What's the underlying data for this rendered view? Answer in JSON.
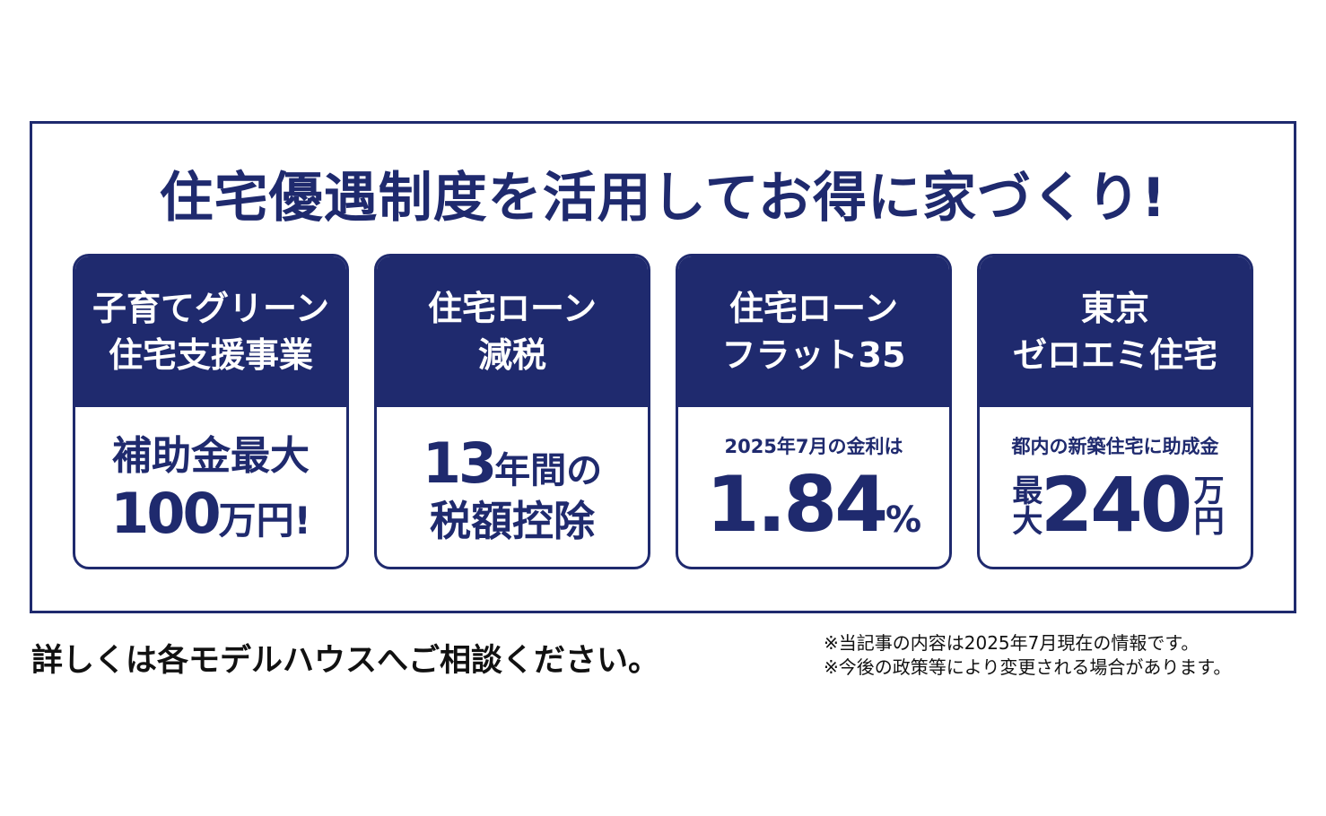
{
  "title": "住宅優遇制度を活用してお得に家づくり!",
  "cards": [
    {
      "header": [
        "子育てグリーン",
        "住宅支援事業"
      ],
      "body": {
        "line1": "補助金最大",
        "number": "100",
        "unit": "万円!"
      }
    },
    {
      "header": [
        "住宅ローン",
        "減税"
      ],
      "body": {
        "number": "13",
        "unit": "年間の",
        "line2": "税額控除"
      }
    },
    {
      "header": [
        "住宅ローン",
        "フラット35"
      ],
      "body": {
        "caption": "2025年7月の金利は",
        "number": "1.84",
        "unit": "%"
      }
    },
    {
      "header": [
        "東京",
        "ゼロエミ住宅"
      ],
      "body": {
        "caption": "都内の新築住宅に助成金",
        "prefix": "最大",
        "number": "240",
        "unit": "万円"
      }
    }
  ],
  "footer": {
    "cta": "詳しくは各モデルハウスへご相談ください。",
    "notes": [
      "※当記事の内容は2025年7月現在の情報です。",
      "※今後の政策等により変更される場合があります。"
    ]
  }
}
